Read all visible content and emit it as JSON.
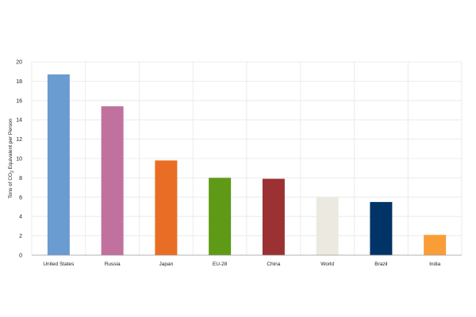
{
  "chart_data": {
    "type": "bar",
    "categories": [
      "United States",
      "Russia",
      "Japan",
      "EU-28",
      "China",
      "World",
      "Brazil",
      "India"
    ],
    "values": [
      18.7,
      15.4,
      9.8,
      8.0,
      7.9,
      6.0,
      5.5,
      2.1
    ],
    "colors": [
      "#6a9bd1",
      "#c0719e",
      "#ea6d25",
      "#5f9a17",
      "#9b3133",
      "#eceae0",
      "#003467",
      "#f99d36"
    ],
    "ylabel_prefix": "Tons of CO",
    "ylabel_sub": "2",
    "ylabel_suffix": " Equivalent per Person",
    "ylim": [
      0,
      20
    ],
    "yticks": [
      0,
      2,
      4,
      6,
      8,
      10,
      12,
      14,
      16,
      18,
      20
    ],
    "grid": true
  }
}
